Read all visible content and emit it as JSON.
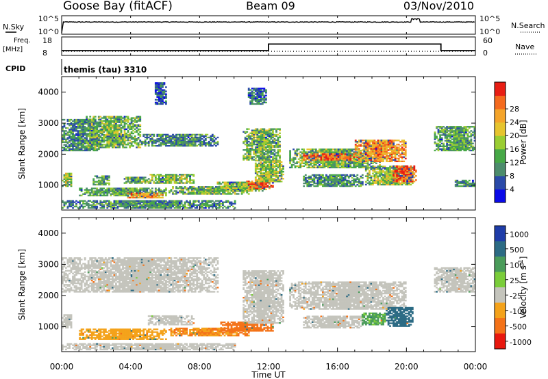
{
  "header": {
    "station": "Goose Bay (fitACF)",
    "beam": "Beam 09",
    "date": "03/Nov/2010"
  },
  "summary": {
    "nsky_label": "N.Sky",
    "nsearch_label": "N.Search",
    "freq_label_1": "Freq.",
    "freq_label_2": "[MHz]",
    "nave_label": "Nave",
    "cpid_label": "CPID",
    "power_top_tick": "10^5",
    "power_bottom_tick": "10^0",
    "freq_ticks": [
      "18",
      "8"
    ],
    "nave_ticks": [
      "60",
      "0"
    ],
    "cpid_text": "themis (tau) 3310"
  },
  "axes": {
    "ylabel": "Slant Range [km]",
    "xlabel": "Time UT",
    "y_ticks": [
      "1000",
      "2000",
      "3000",
      "4000"
    ],
    "x_ticks": [
      "00:00",
      "04:00",
      "08:00",
      "12:00",
      "16:00",
      "20:00",
      "00:00"
    ]
  },
  "colors": {
    "frame": "#000000",
    "ground_scatter": "#c4c4bc"
  },
  "chart_data": [
    {
      "type": "line",
      "title": "Goose Bay (fitACF)",
      "series": [
        {
          "name": "N.Sky",
          "x": [
            0,
            0.1,
            2,
            4,
            6,
            8,
            10,
            12,
            14,
            16,
            18,
            20,
            20.5,
            21,
            22,
            24
          ],
          "y": [
            1,
            5000,
            4000,
            5000,
            4000,
            5000,
            4000,
            5000,
            4000,
            5000,
            4000,
            5000,
            50000,
            4000,
            5000,
            4000
          ]
        },
        {
          "name": "Freq. [MHz]",
          "x": [
            0,
            12,
            12,
            22,
            22,
            24
          ],
          "y": [
            10.5,
            10.5,
            16.5,
            16.5,
            10.5,
            10.5
          ]
        }
      ],
      "xlim": [
        0,
        24
      ]
    },
    {
      "type": "heatmap",
      "ylabel": "Slant Range [km]",
      "xlabel": "Time UT",
      "colorbar_label": "Power [dB]",
      "colorbar_ticks": [
        "4",
        "8",
        "12",
        "16",
        "20",
        "24",
        "28"
      ],
      "colorbar_colors": [
        "#0a0ae8",
        "#2a4aa8",
        "#4c8c6c",
        "#46a846",
        "#9acd32",
        "#e6c42e",
        "#f4a42a",
        "#f46a1e",
        "#e81e14"
      ],
      "xlim": [
        0,
        24
      ],
      "ylim": [
        200,
        4500
      ],
      "regions": [
        {
          "t0": 0.0,
          "t1": 2.2,
          "r0": 2100,
          "r1": 3100,
          "p": 10
        },
        {
          "t0": 1.4,
          "t1": 4.6,
          "r0": 2200,
          "r1": 3200,
          "p": 14
        },
        {
          "t0": 4.6,
          "t1": 9.0,
          "r0": 2250,
          "r1": 2650,
          "p": 10
        },
        {
          "t0": 0.0,
          "t1": 0.6,
          "r0": 950,
          "r1": 1400,
          "p": 16
        },
        {
          "t0": 1.8,
          "t1": 2.8,
          "r0": 1000,
          "r1": 1300,
          "p": 12
        },
        {
          "t0": 3.6,
          "t1": 5.0,
          "r0": 1050,
          "r1": 1250,
          "p": 14
        },
        {
          "t0": 5.0,
          "t1": 7.6,
          "r0": 1050,
          "r1": 1350,
          "p": 16
        },
        {
          "t0": 1.0,
          "t1": 6.0,
          "r0": 650,
          "r1": 900,
          "p": 12
        },
        {
          "t0": 3.8,
          "t1": 5.8,
          "r0": 580,
          "r1": 750,
          "p": 24
        },
        {
          "t0": 6.2,
          "t1": 10.8,
          "r0": 700,
          "r1": 950,
          "p": 14
        },
        {
          "t0": 9.0,
          "t1": 11.8,
          "r0": 800,
          "r1": 1100,
          "p": 16
        },
        {
          "t0": 10.7,
          "t1": 12.2,
          "r0": 880,
          "r1": 1150,
          "p": 28
        },
        {
          "t0": 11.2,
          "t1": 12.8,
          "r0": 1100,
          "r1": 1800,
          "p": 16
        },
        {
          "t0": 10.5,
          "t1": 12.6,
          "r0": 1800,
          "r1": 2800,
          "p": 14
        },
        {
          "t0": 0.0,
          "t1": 10.0,
          "r0": 250,
          "r1": 500,
          "p": 10
        },
        {
          "t0": 10.8,
          "t1": 11.8,
          "r0": 3600,
          "r1": 4100,
          "p": 8
        },
        {
          "t0": 13.2,
          "t1": 18.5,
          "r0": 1550,
          "r1": 2150,
          "p": 14
        },
        {
          "t0": 17.0,
          "t1": 20.0,
          "r0": 1750,
          "r1": 2450,
          "p": 24
        },
        {
          "t0": 14.0,
          "t1": 17.0,
          "r0": 1800,
          "r1": 2000,
          "p": 28
        },
        {
          "t0": 14.0,
          "t1": 17.5,
          "r0": 950,
          "r1": 1350,
          "p": 10
        },
        {
          "t0": 17.6,
          "t1": 20.4,
          "r0": 1000,
          "r1": 1600,
          "p": 16
        },
        {
          "t0": 19.2,
          "t1": 20.6,
          "r0": 1100,
          "r1": 1600,
          "p": 28
        },
        {
          "t0": 21.6,
          "t1": 24.0,
          "r0": 2100,
          "r1": 2900,
          "p": 12
        },
        {
          "t0": 22.8,
          "t1": 24.0,
          "r0": 950,
          "r1": 1150,
          "p": 10
        },
        {
          "t0": 5.4,
          "t1": 6.0,
          "r0": 3600,
          "r1": 4300,
          "p": 6
        }
      ]
    },
    {
      "type": "heatmap",
      "ylabel": "Slant Range [km]",
      "xlabel": "Time UT",
      "colorbar_label": "Velocity [m s^-1]",
      "colorbar_ticks": [
        "1000",
        "500",
        "100",
        "25",
        "-25",
        "-100",
        "-500",
        "-1000"
      ],
      "colorbar_colors": [
        "#1e3ca8",
        "#2c6b84",
        "#4a9c5a",
        "#7acd3a",
        "#c4c4bc",
        "#f4a21a",
        "#f47218",
        "#e8180e"
      ],
      "xlim": [
        0,
        24
      ],
      "ylim": [
        200,
        4500
      ],
      "regions": [
        {
          "t0": 0.0,
          "t1": 9.0,
          "r0": 2100,
          "r1": 3200,
          "v": 0
        },
        {
          "t0": 0.0,
          "t1": 0.6,
          "r0": 950,
          "r1": 1400,
          "v": 0
        },
        {
          "t0": 5.0,
          "t1": 7.6,
          "r0": 1050,
          "r1": 1350,
          "v": 0
        },
        {
          "t0": 1.0,
          "t1": 6.0,
          "r0": 580,
          "r1": 900,
          "v": -150
        },
        {
          "t0": 6.2,
          "t1": 10.8,
          "r0": 700,
          "r1": 950,
          "v": -200
        },
        {
          "t0": 9.2,
          "t1": 12.2,
          "r0": 850,
          "r1": 1150,
          "v": -300
        },
        {
          "t0": 10.5,
          "t1": 12.8,
          "r0": 1100,
          "r1": 2800,
          "v": 0
        },
        {
          "t0": 13.2,
          "t1": 20.0,
          "r0": 1550,
          "r1": 2450,
          "v": 0
        },
        {
          "t0": 14.0,
          "t1": 17.5,
          "r0": 950,
          "r1": 1350,
          "v": 0
        },
        {
          "t0": 17.4,
          "t1": 18.8,
          "r0": 1050,
          "r1": 1450,
          "v": 60
        },
        {
          "t0": 18.8,
          "t1": 20.4,
          "r0": 1000,
          "r1": 1600,
          "v": 300
        },
        {
          "t0": 21.6,
          "t1": 24.0,
          "r0": 2100,
          "r1": 2900,
          "v": 0
        },
        {
          "t0": 0.0,
          "t1": 10.0,
          "r0": 250,
          "r1": 450,
          "v": 0
        }
      ]
    }
  ]
}
